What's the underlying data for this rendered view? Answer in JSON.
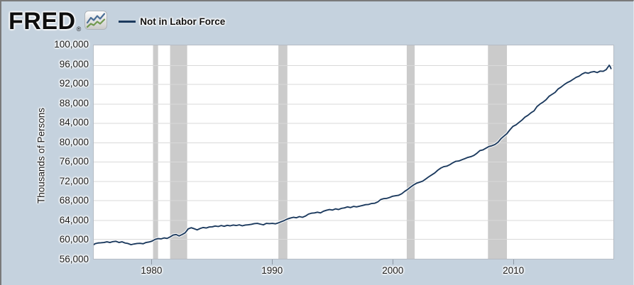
{
  "header": {
    "logo_text": "FRED",
    "logo_registered": "®",
    "legend": {
      "series_label": "Not in Labor Force"
    }
  },
  "icons": {
    "fred_chart_icon": "line-chart-icon",
    "fred_chart_icon_colors": {
      "blue_line": "#4a6e96",
      "green_line": "#71994f"
    }
  },
  "colors": {
    "page_bg": "#c5d2de",
    "plot_bg": "#ffffff",
    "gridline": "#d9d9d9",
    "recession_band": "#cbcbcb",
    "line": "#1c3a5e",
    "text": "#1a1a1a"
  },
  "chart_data": {
    "type": "line",
    "title": "Not in Labor Force",
    "xlabel": "",
    "ylabel": "Thousands of Persons",
    "legend_position": "top-left header",
    "grid": "horizontal only",
    "xlim": [
      1975.15,
      2018.35
    ],
    "ylim": [
      56000,
      100000
    ],
    "line_color": "#1c3a5e",
    "x_ticks": [
      {
        "v": 1980,
        "label": "1980"
      },
      {
        "v": 1990,
        "label": "1990"
      },
      {
        "v": 2000,
        "label": "2000"
      },
      {
        "v": 2010,
        "label": "2010"
      }
    ],
    "y_ticks": [
      {
        "v": 56000,
        "label": "56,000"
      },
      {
        "v": 60000,
        "label": "60,000"
      },
      {
        "v": 64000,
        "label": "64,000"
      },
      {
        "v": 68000,
        "label": "68,000"
      },
      {
        "v": 72000,
        "label": "72,000"
      },
      {
        "v": 76000,
        "label": "76,000"
      },
      {
        "v": 80000,
        "label": "80,000"
      },
      {
        "v": 84000,
        "label": "84,000"
      },
      {
        "v": 88000,
        "label": "88,000"
      },
      {
        "v": 92000,
        "label": "92,000"
      },
      {
        "v": 96000,
        "label": "96,000"
      },
      {
        "v": 100000,
        "label": "100,000"
      }
    ],
    "recessions": [
      [
        1980.08,
        1980.5
      ],
      [
        1981.5,
        1982.92
      ],
      [
        1990.5,
        1991.25
      ],
      [
        2001.17,
        2001.83
      ],
      [
        2007.92,
        2009.5
      ]
    ],
    "series": [
      {
        "name": "Not in Labor Force",
        "units": "Thousands of Persons",
        "points": [
          [
            1975.0,
            58650
          ],
          [
            1975.25,
            59100
          ],
          [
            1975.5,
            59250
          ],
          [
            1975.75,
            59300
          ],
          [
            1976.0,
            59350
          ],
          [
            1976.25,
            59500
          ],
          [
            1976.5,
            59350
          ],
          [
            1976.75,
            59550
          ],
          [
            1977.0,
            59600
          ],
          [
            1977.25,
            59350
          ],
          [
            1977.5,
            59500
          ],
          [
            1977.75,
            59250
          ],
          [
            1978.0,
            59150
          ],
          [
            1978.25,
            58900
          ],
          [
            1978.5,
            59050
          ],
          [
            1978.75,
            59150
          ],
          [
            1979.0,
            59200
          ],
          [
            1979.25,
            59100
          ],
          [
            1979.5,
            59350
          ],
          [
            1979.75,
            59450
          ],
          [
            1980.0,
            59650
          ],
          [
            1980.25,
            60000
          ],
          [
            1980.5,
            60150
          ],
          [
            1980.75,
            60100
          ],
          [
            1981.0,
            60300
          ],
          [
            1981.25,
            60200
          ],
          [
            1981.5,
            60500
          ],
          [
            1981.75,
            60900
          ],
          [
            1982.0,
            61000
          ],
          [
            1982.25,
            60700
          ],
          [
            1982.5,
            61000
          ],
          [
            1982.75,
            61350
          ],
          [
            1983.0,
            62150
          ],
          [
            1983.25,
            62400
          ],
          [
            1983.5,
            62200
          ],
          [
            1983.75,
            61950
          ],
          [
            1984.0,
            62250
          ],
          [
            1984.25,
            62450
          ],
          [
            1984.5,
            62350
          ],
          [
            1984.75,
            62550
          ],
          [
            1985.0,
            62600
          ],
          [
            1985.25,
            62750
          ],
          [
            1985.5,
            62650
          ],
          [
            1985.75,
            62850
          ],
          [
            1986.0,
            62700
          ],
          [
            1986.25,
            62900
          ],
          [
            1986.5,
            62800
          ],
          [
            1986.75,
            62950
          ],
          [
            1987.0,
            62850
          ],
          [
            1987.25,
            63000
          ],
          [
            1987.5,
            62800
          ],
          [
            1987.75,
            62950
          ],
          [
            1988.0,
            63000
          ],
          [
            1988.25,
            63100
          ],
          [
            1988.5,
            63250
          ],
          [
            1988.75,
            63300
          ],
          [
            1989.0,
            63150
          ],
          [
            1989.25,
            63000
          ],
          [
            1989.5,
            63300
          ],
          [
            1989.75,
            63250
          ],
          [
            1990.0,
            63300
          ],
          [
            1990.25,
            63200
          ],
          [
            1990.5,
            63400
          ],
          [
            1990.75,
            63650
          ],
          [
            1991.0,
            63900
          ],
          [
            1991.25,
            64200
          ],
          [
            1991.5,
            64400
          ],
          [
            1991.75,
            64550
          ],
          [
            1992.0,
            64450
          ],
          [
            1992.25,
            64700
          ],
          [
            1992.5,
            64550
          ],
          [
            1992.75,
            64800
          ],
          [
            1993.0,
            65200
          ],
          [
            1993.25,
            65400
          ],
          [
            1993.5,
            65450
          ],
          [
            1993.75,
            65600
          ],
          [
            1994.0,
            65450
          ],
          [
            1994.25,
            65800
          ],
          [
            1994.5,
            66000
          ],
          [
            1994.75,
            66150
          ],
          [
            1995.0,
            66050
          ],
          [
            1995.25,
            66300
          ],
          [
            1995.5,
            66150
          ],
          [
            1995.75,
            66400
          ],
          [
            1996.0,
            66500
          ],
          [
            1996.25,
            66700
          ],
          [
            1996.5,
            66550
          ],
          [
            1996.75,
            66800
          ],
          [
            1997.0,
            66700
          ],
          [
            1997.25,
            66850
          ],
          [
            1997.5,
            67000
          ],
          [
            1997.75,
            67150
          ],
          [
            1998.0,
            67200
          ],
          [
            1998.25,
            67400
          ],
          [
            1998.5,
            67450
          ],
          [
            1998.75,
            67700
          ],
          [
            1999.0,
            68200
          ],
          [
            1999.25,
            68400
          ],
          [
            1999.5,
            68450
          ],
          [
            1999.75,
            68650
          ],
          [
            2000.0,
            68900
          ],
          [
            2000.25,
            69000
          ],
          [
            2000.5,
            69100
          ],
          [
            2000.75,
            69400
          ],
          [
            2001.0,
            69900
          ],
          [
            2001.25,
            70300
          ],
          [
            2001.5,
            70800
          ],
          [
            2001.75,
            71250
          ],
          [
            2002.0,
            71600
          ],
          [
            2002.25,
            71800
          ],
          [
            2002.5,
            72000
          ],
          [
            2002.75,
            72450
          ],
          [
            2003.0,
            72900
          ],
          [
            2003.25,
            73300
          ],
          [
            2003.5,
            73700
          ],
          [
            2003.75,
            74250
          ],
          [
            2004.0,
            74700
          ],
          [
            2004.25,
            75000
          ],
          [
            2004.5,
            75100
          ],
          [
            2004.75,
            75400
          ],
          [
            2005.0,
            75800
          ],
          [
            2005.25,
            76100
          ],
          [
            2005.5,
            76150
          ],
          [
            2005.75,
            76400
          ],
          [
            2006.0,
            76650
          ],
          [
            2006.25,
            76900
          ],
          [
            2006.5,
            77050
          ],
          [
            2006.75,
            77300
          ],
          [
            2007.0,
            77750
          ],
          [
            2007.25,
            78300
          ],
          [
            2007.5,
            78450
          ],
          [
            2007.75,
            78800
          ],
          [
            2008.0,
            79150
          ],
          [
            2008.25,
            79300
          ],
          [
            2008.5,
            79550
          ],
          [
            2008.75,
            80000
          ],
          [
            2009.0,
            80750
          ],
          [
            2009.25,
            81300
          ],
          [
            2009.5,
            81800
          ],
          [
            2009.75,
            82600
          ],
          [
            2010.0,
            83300
          ],
          [
            2010.25,
            83600
          ],
          [
            2010.5,
            84100
          ],
          [
            2010.75,
            84600
          ],
          [
            2011.0,
            85200
          ],
          [
            2011.25,
            85600
          ],
          [
            2011.5,
            86100
          ],
          [
            2011.75,
            86500
          ],
          [
            2012.0,
            87400
          ],
          [
            2012.25,
            87900
          ],
          [
            2012.5,
            88300
          ],
          [
            2012.75,
            88800
          ],
          [
            2013.0,
            89500
          ],
          [
            2013.25,
            89900
          ],
          [
            2013.5,
            90300
          ],
          [
            2013.75,
            91000
          ],
          [
            2014.0,
            91400
          ],
          [
            2014.25,
            91900
          ],
          [
            2014.5,
            92300
          ],
          [
            2014.75,
            92600
          ],
          [
            2015.0,
            93000
          ],
          [
            2015.25,
            93400
          ],
          [
            2015.5,
            93650
          ],
          [
            2015.75,
            94100
          ],
          [
            2016.0,
            94400
          ],
          [
            2016.25,
            94250
          ],
          [
            2016.5,
            94500
          ],
          [
            2016.75,
            94600
          ],
          [
            2017.0,
            94400
          ],
          [
            2017.25,
            94700
          ],
          [
            2017.5,
            94650
          ],
          [
            2017.75,
            95000
          ],
          [
            2018.0,
            95900
          ],
          [
            2018.08,
            95650
          ],
          [
            2018.17,
            95100
          ]
        ]
      }
    ]
  }
}
